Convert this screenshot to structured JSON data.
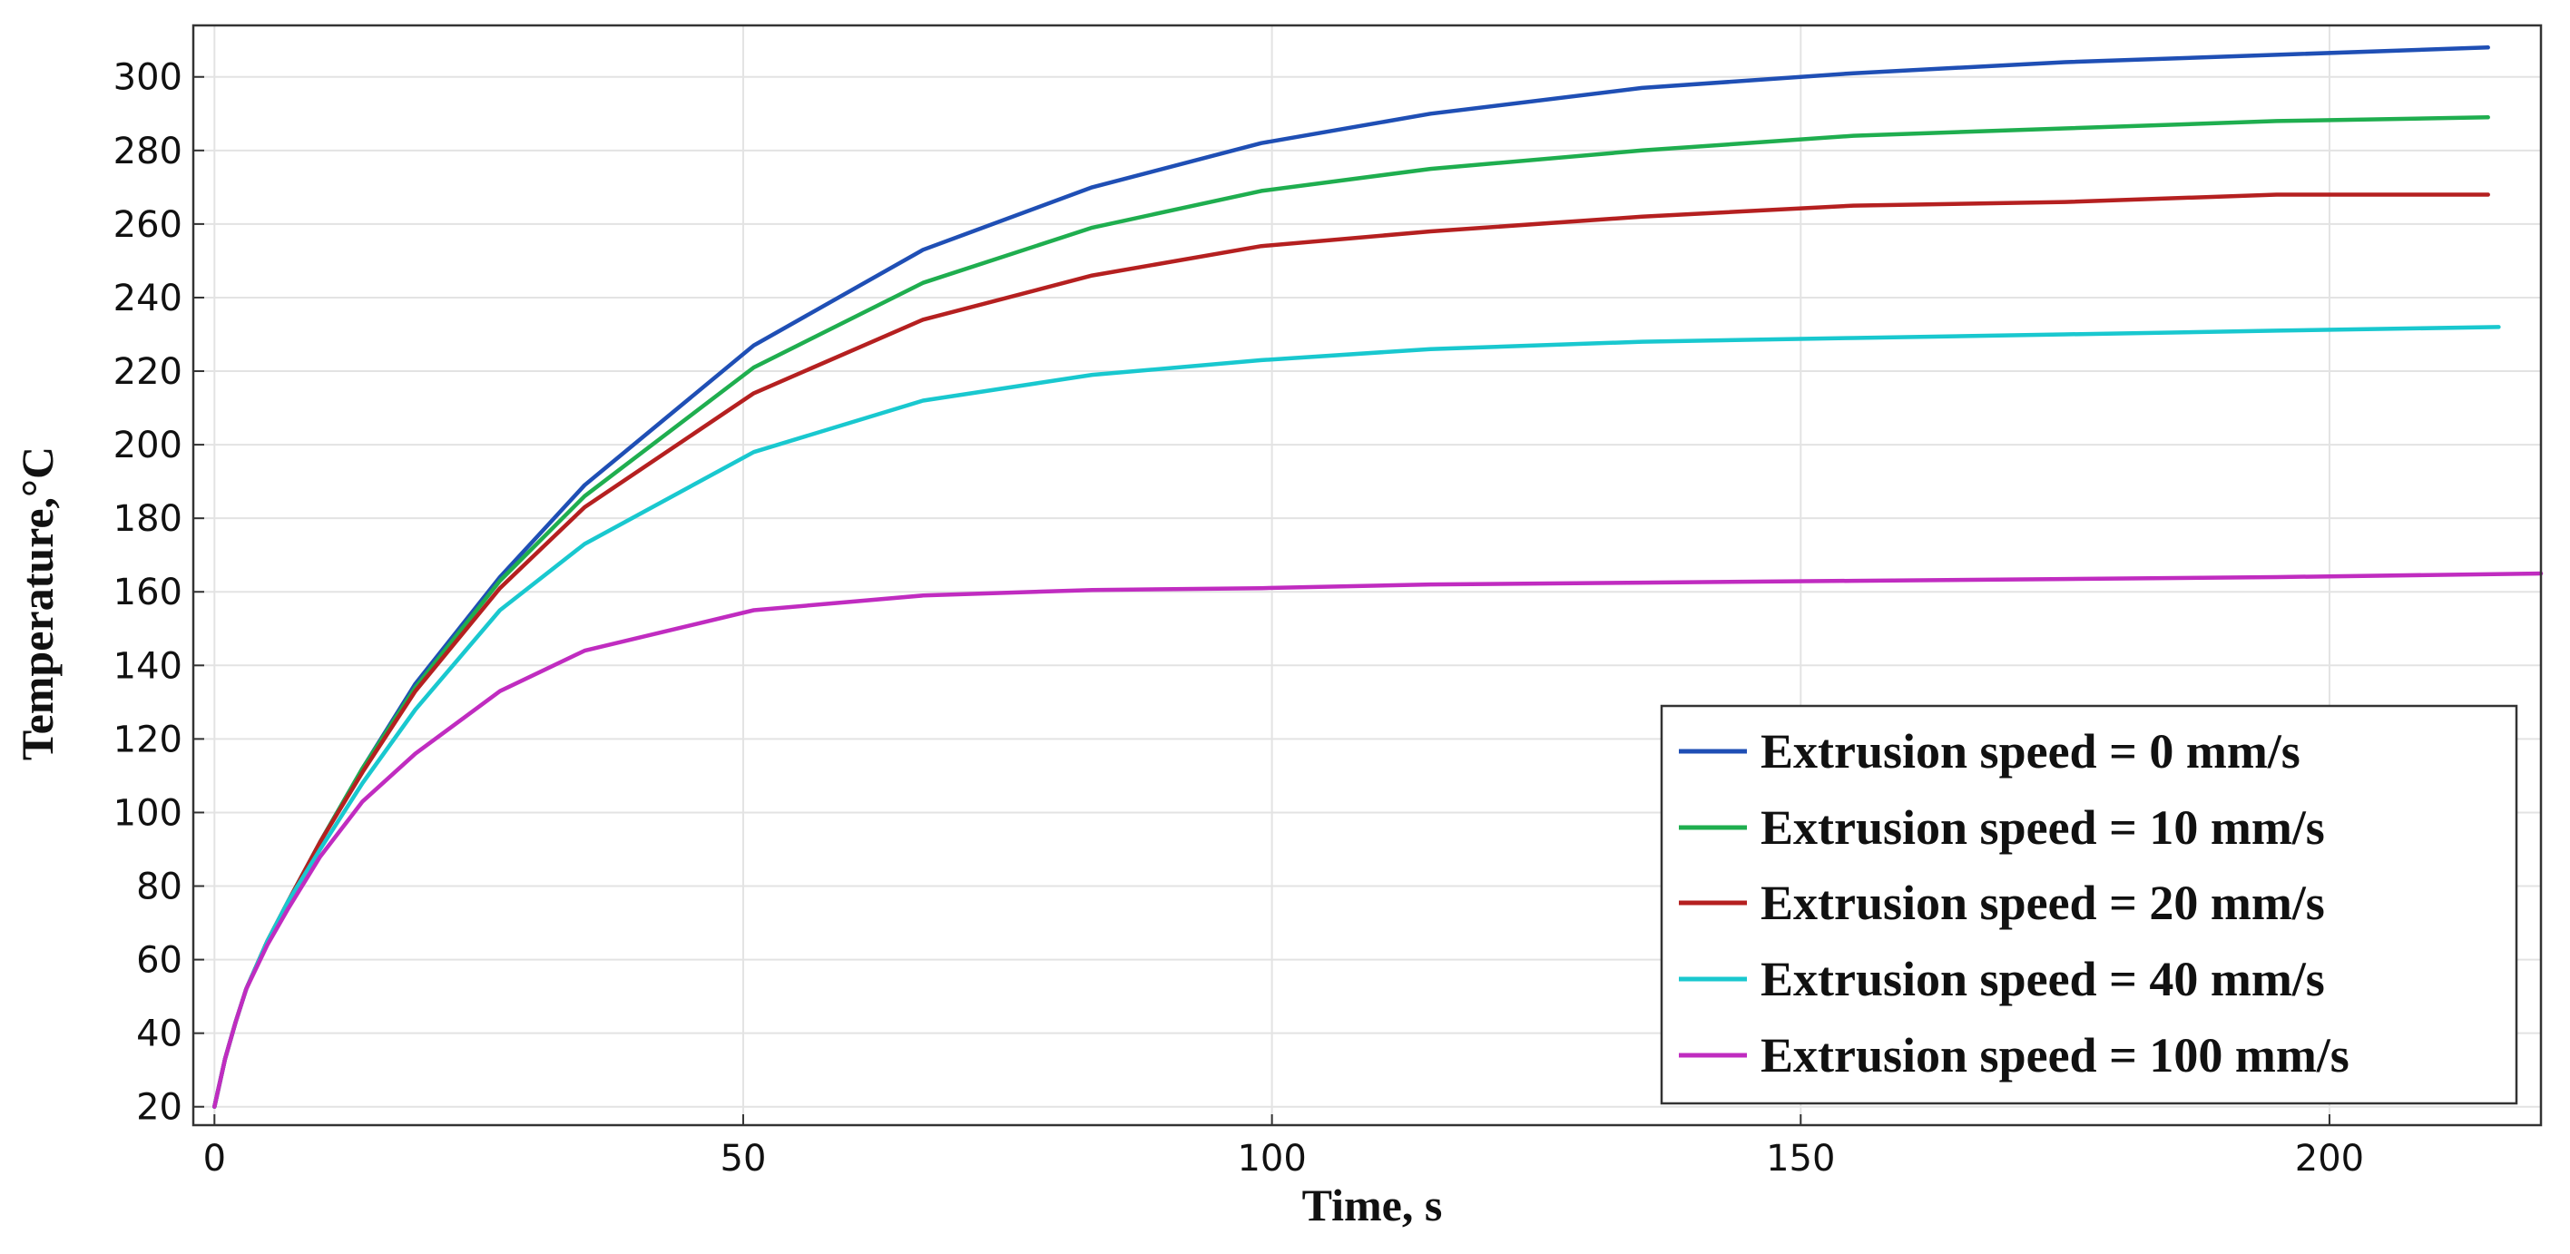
{
  "chart_data": {
    "type": "line",
    "title": "",
    "xlabel": "Time, s",
    "ylabel": "Temperature,°C",
    "xlim": [
      -2,
      220
    ],
    "ylim": [
      15,
      314
    ],
    "xticks": [
      0,
      50,
      100,
      150,
      200
    ],
    "yticks": [
      20,
      40,
      60,
      80,
      100,
      120,
      140,
      160,
      180,
      200,
      220,
      240,
      260,
      280,
      300
    ],
    "grid": true,
    "legend_position": "bottom-right",
    "series": [
      {
        "name": "Extrusion speed = 0 mm/s",
        "color": "#1f4fb5",
        "x": [
          0,
          1,
          2,
          3,
          5,
          7,
          10,
          14,
          19,
          27,
          35,
          51,
          67,
          83,
          99,
          115,
          135,
          155,
          175,
          195,
          215
        ],
        "y": [
          20,
          33,
          43,
          52,
          65,
          76,
          92,
          112,
          135,
          164,
          189,
          227,
          253,
          270,
          282,
          290,
          297,
          301,
          304,
          306,
          308
        ]
      },
      {
        "name": "Extrusion speed = 10 mm/s",
        "color": "#1fae4f",
        "x": [
          0,
          1,
          2,
          3,
          5,
          7,
          10,
          14,
          19,
          27,
          35,
          51,
          67,
          83,
          99,
          115,
          135,
          155,
          175,
          195,
          215
        ],
        "y": [
          20,
          33,
          43,
          52,
          65,
          76,
          92,
          112,
          134,
          163,
          186,
          221,
          244,
          259,
          269,
          275,
          280,
          284,
          286,
          288,
          289
        ]
      },
      {
        "name": "Extrusion speed = 20 mm/s",
        "color": "#b52020",
        "x": [
          0,
          1,
          2,
          3,
          5,
          7,
          10,
          14,
          19,
          27,
          35,
          51,
          67,
          83,
          99,
          115,
          135,
          155,
          175,
          195,
          215
        ],
        "y": [
          20,
          33,
          43,
          52,
          65,
          76,
          92,
          111,
          133,
          161,
          183,
          214,
          234,
          246,
          254,
          258,
          262,
          265,
          266,
          268,
          268
        ]
      },
      {
        "name": "Extrusion speed = 40 mm/s",
        "color": "#19c8cf",
        "x": [
          0,
          1,
          2,
          3,
          5,
          7,
          10,
          14,
          19,
          27,
          35,
          51,
          67,
          83,
          99,
          115,
          135,
          155,
          175,
          195,
          216
        ],
        "y": [
          20,
          33,
          43,
          52,
          65,
          76,
          90,
          108,
          128,
          155,
          173,
          198,
          212,
          219,
          223,
          226,
          228,
          229,
          230,
          231,
          232
        ]
      },
      {
        "name": "Extrusion speed = 100 mm/s",
        "color": "#c02cc0",
        "x": [
          0,
          1,
          2,
          3,
          5,
          7,
          10,
          14,
          19,
          27,
          35,
          51,
          67,
          83,
          99,
          115,
          135,
          155,
          175,
          195,
          220
        ],
        "y": [
          20,
          33,
          43,
          52,
          64,
          74,
          88,
          103,
          116,
          133,
          144,
          155,
          159,
          160.5,
          161,
          162,
          162.5,
          163,
          163.5,
          164,
          165
        ]
      }
    ]
  }
}
